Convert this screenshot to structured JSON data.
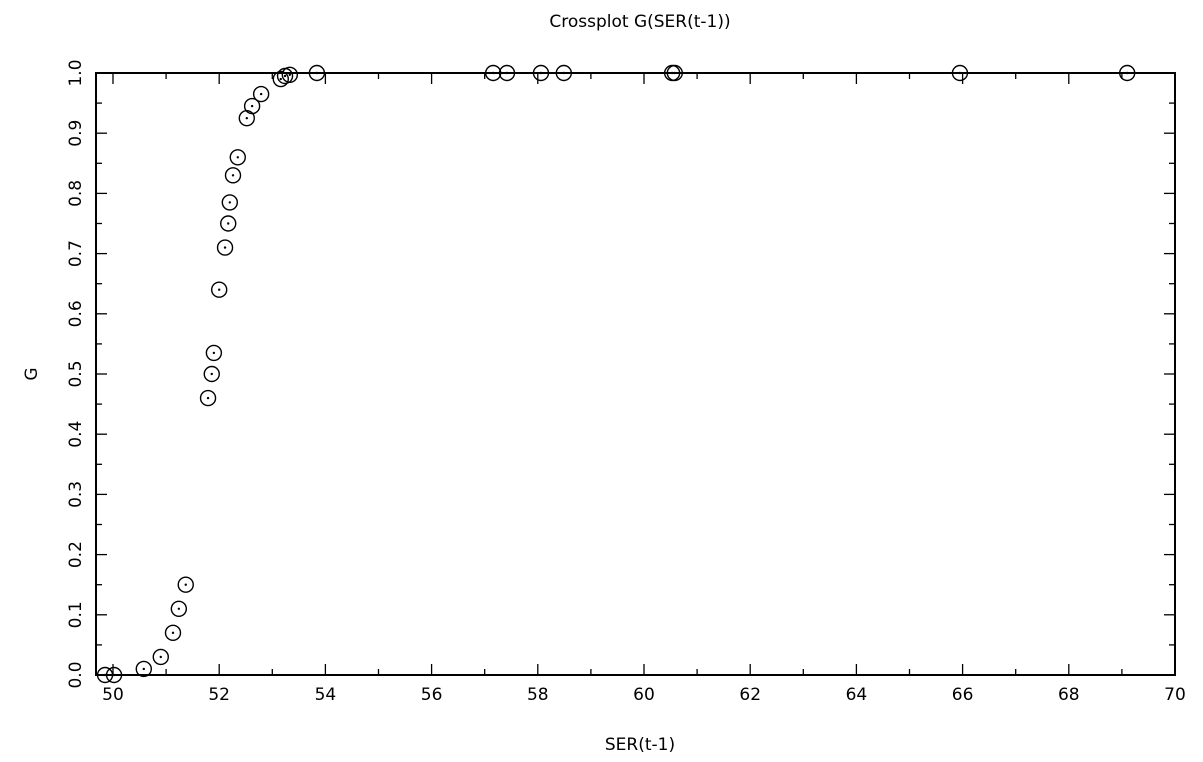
{
  "chart_data": {
    "type": "scatter",
    "title": "Crossplot G(SER(t-1))",
    "xlabel": "SER(t-1)",
    "ylabel": "G",
    "x": [
      49.85,
      50.02,
      50.58,
      50.9,
      51.13,
      51.24,
      51.37,
      51.79,
      51.86,
      51.9,
      52.0,
      52.11,
      52.17,
      52.2,
      52.26,
      52.35,
      52.52,
      52.62,
      52.79,
      53.16,
      53.24,
      53.33,
      53.84,
      57.16,
      57.42,
      58.06,
      58.49,
      60.53,
      60.58,
      65.95,
      69.1
    ],
    "values": [
      0.0,
      0.0,
      0.01,
      0.03,
      0.07,
      0.11,
      0.15,
      0.46,
      0.5,
      0.535,
      0.64,
      0.71,
      0.75,
      0.785,
      0.83,
      0.86,
      0.925,
      0.945,
      0.965,
      0.99,
      0.995,
      0.997,
      1.0,
      1.0,
      1.0,
      1.0,
      1.0,
      1.0,
      1.0,
      1.0,
      1.0
    ],
    "color": "#000000",
    "xlim": [
      49.68,
      70
    ],
    "xticks": [
      50,
      52,
      54,
      56,
      58,
      60,
      62,
      64,
      66,
      68,
      70
    ],
    "xticks_minor": [
      51,
      53,
      55,
      57,
      59,
      61,
      63,
      65,
      67,
      69
    ],
    "ylim": [
      0,
      1
    ],
    "yticks": [
      {
        "value": 0,
        "label": "0.0"
      },
      0.1,
      0.2,
      0.3,
      0.4,
      0.5,
      0.6,
      0.7,
      0.8,
      0.9,
      {
        "value": 1,
        "label": "1.0"
      }
    ],
    "yticks_minor": [
      0.05,
      0.15,
      0.25,
      0.35,
      0.45,
      0.55,
      0.65,
      0.75,
      0.85,
      0.95
    ],
    "grid": false
  }
}
